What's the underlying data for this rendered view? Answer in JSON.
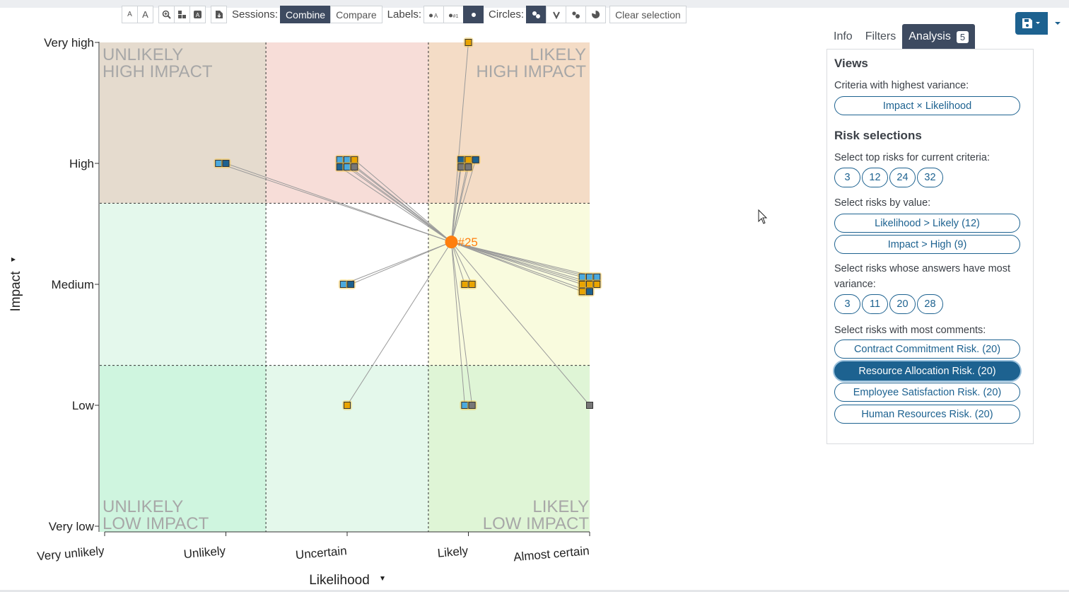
{
  "toolbar": {
    "sessions_label": "Sessions:",
    "sessions_options": [
      "Combine",
      "Compare"
    ],
    "sessions_active": "Combine",
    "labels_label": "Labels:",
    "circles_label": "Circles:",
    "clear_selection": "Clear selection",
    "font_small": "A",
    "font_large": "A"
  },
  "tabs": [
    {
      "label": "Info"
    },
    {
      "label": "Filters"
    },
    {
      "label": "Analysis",
      "badge": "5",
      "active": true
    }
  ],
  "panel": {
    "views_heading": "Views",
    "variance_label": "Criteria with highest variance:",
    "variance_pill": "Impact × Likelihood",
    "risk_heading": "Risk selections",
    "top_label": "Select top risks for current criteria:",
    "top_values": [
      "3",
      "12",
      "24",
      "32"
    ],
    "value_label": "Select risks by value:",
    "value_pills": [
      "Likelihood > Likely (12)",
      "Impact > High (9)"
    ],
    "answers_label": "Select risks whose answers have most variance:",
    "answers_values": [
      "3",
      "11",
      "20",
      "28"
    ],
    "comments_label": "Select risks with most comments:",
    "comments_pills": [
      {
        "label": "Contract Commitment Risk. (20)",
        "active": false
      },
      {
        "label": "Resource Allocation Risk. (20)",
        "active": true
      },
      {
        "label": "Employee Satisfaction Risk. (20)",
        "active": false
      },
      {
        "label": "Human Resources Risk. (20)",
        "active": false
      }
    ]
  },
  "chart_data": {
    "type": "scatter",
    "xlabel": "Likelihood",
    "ylabel": "Impact",
    "x_ticks": [
      "Very unlikely",
      "Unlikely",
      "Uncertain",
      "Likely",
      "Almost certain"
    ],
    "y_ticks": [
      "Very low",
      "Low",
      "Medium",
      "High",
      "Very high"
    ],
    "xlim": [
      1,
      5
    ],
    "ylim": [
      1,
      5
    ],
    "quadrant_labels": {
      "top_left": [
        "UNLIKELY",
        "HIGH IMPACT"
      ],
      "top_right": [
        "LIKELY",
        "HIGH IMPACT"
      ],
      "bottom_left": [
        "UNLIKELY",
        "LOW IMPACT"
      ],
      "bottom_right": [
        "LIKELY",
        "LOW IMPACT"
      ]
    },
    "zones": [
      {
        "x": [
          1,
          2.33
        ],
        "y": [
          3.67,
          5
        ],
        "color": "#e5dbce"
      },
      {
        "x": [
          2.33,
          3.67
        ],
        "y": [
          3.67,
          5
        ],
        "color": "#f7ddd8"
      },
      {
        "x": [
          3.67,
          5
        ],
        "y": [
          3.67,
          5
        ],
        "color": "#f4dcc6"
      },
      {
        "x": [
          1,
          2.33
        ],
        "y": [
          2.33,
          3.67
        ],
        "color": "#e4f8ec"
      },
      {
        "x": [
          2.33,
          3.67
        ],
        "y": [
          2.33,
          3.67
        ],
        "color": "#ffffff"
      },
      {
        "x": [
          3.67,
          5
        ],
        "y": [
          2.33,
          3.67
        ],
        "color": "#f9fbde"
      },
      {
        "x": [
          1,
          2.33
        ],
        "y": [
          1,
          2.33
        ],
        "color": "#cff5df"
      },
      {
        "x": [
          2.33,
          3.67
        ],
        "y": [
          1,
          2.33
        ],
        "color": "#e4f8eb"
      },
      {
        "x": [
          3.67,
          5
        ],
        "y": [
          1,
          2.33
        ],
        "color": "#dff5d6"
      }
    ],
    "selected": {
      "label": "#25",
      "x": 3.86,
      "y": 3.35,
      "color": "#ff7f0e"
    },
    "series": [
      {
        "name": "points",
        "points": [
          {
            "x": 4.0,
            "y": 5.0,
            "c": "#e9a400",
            "glow": true
          },
          {
            "x": 1.94,
            "y": 4.0,
            "c": "#4aa9de",
            "glow": true
          },
          {
            "x": 2.0,
            "y": 4.0,
            "c": "#1d6290",
            "glow": true
          },
          {
            "x": 2.94,
            "y": 4.03,
            "c": "#4aa9de",
            "glow": true
          },
          {
            "x": 3.0,
            "y": 4.03,
            "c": "#4aa9de",
            "glow": true
          },
          {
            "x": 3.06,
            "y": 4.03,
            "c": "#e9a400",
            "glow": true
          },
          {
            "x": 2.94,
            "y": 3.97,
            "c": "#1d6290",
            "glow": true
          },
          {
            "x": 3.0,
            "y": 3.97,
            "c": "#4aa9de",
            "glow": true
          },
          {
            "x": 3.06,
            "y": 3.97,
            "c": "#777777",
            "glow": true
          },
          {
            "x": 3.94,
            "y": 4.03,
            "c": "#1d6290",
            "glow": true
          },
          {
            "x": 4.0,
            "y": 4.03,
            "c": "#e9a400",
            "glow": true
          },
          {
            "x": 4.06,
            "y": 4.03,
            "c": "#1d6290",
            "glow": true
          },
          {
            "x": 3.94,
            "y": 3.97,
            "c": "#777777",
            "glow": true
          },
          {
            "x": 4.0,
            "y": 3.97,
            "c": "#777777",
            "glow": true
          },
          {
            "x": 2.97,
            "y": 3.0,
            "c": "#4aa9de",
            "glow": true
          },
          {
            "x": 3.03,
            "y": 3.0,
            "c": "#1d6290",
            "glow": true
          },
          {
            "x": 3.97,
            "y": 3.0,
            "c": "#e9a400",
            "glow": true
          },
          {
            "x": 4.03,
            "y": 3.0,
            "c": "#e9a400",
            "glow": true
          },
          {
            "x": 4.94,
            "y": 3.06,
            "c": "#4aa9de",
            "glow": true
          },
          {
            "x": 5.0,
            "y": 3.06,
            "c": "#4aa9de",
            "glow": true
          },
          {
            "x": 5.06,
            "y": 3.06,
            "c": "#4aa9de",
            "glow": true
          },
          {
            "x": 4.94,
            "y": 3.0,
            "c": "#e9a400",
            "glow": true
          },
          {
            "x": 5.0,
            "y": 3.0,
            "c": "#e9a400",
            "glow": true
          },
          {
            "x": 5.06,
            "y": 3.0,
            "c": "#e9a400",
            "glow": true
          },
          {
            "x": 4.94,
            "y": 2.94,
            "c": "#e9a400",
            "glow": true
          },
          {
            "x": 5.0,
            "y": 2.94,
            "c": "#1d6290",
            "glow": true
          },
          {
            "x": 3.0,
            "y": 2.0,
            "c": "#e9a400",
            "glow": true
          },
          {
            "x": 3.97,
            "y": 2.0,
            "c": "#4aa9de",
            "glow": true
          },
          {
            "x": 4.03,
            "y": 2.0,
            "c": "#777777",
            "glow": true
          },
          {
            "x": 5.0,
            "y": 2.0,
            "c": "#777777",
            "glow": false
          }
        ]
      }
    ]
  }
}
